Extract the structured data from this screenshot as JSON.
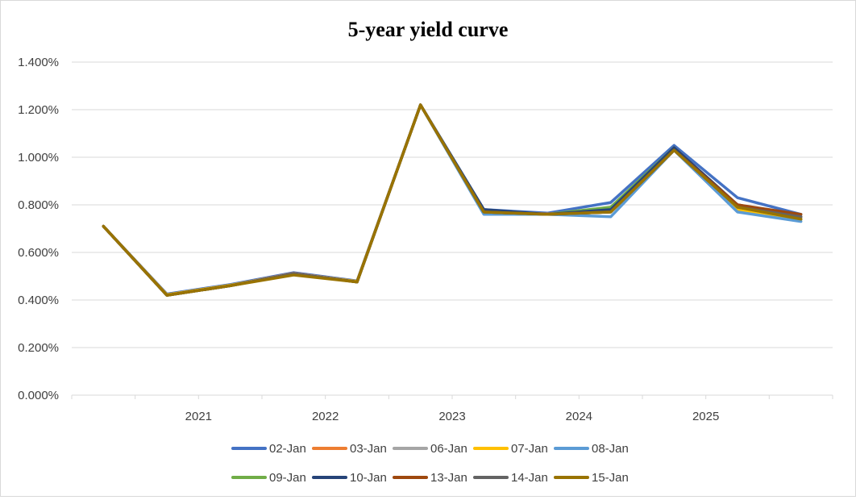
{
  "chart_data": {
    "type": "line",
    "title": "5-year yield curve",
    "xlabel": "",
    "ylabel": "",
    "ylim": [
      0,
      0.014
    ],
    "y_ticks": [
      "0.000%",
      "0.200%",
      "0.400%",
      "0.600%",
      "0.800%",
      "1.000%",
      "1.200%",
      "1.400%"
    ],
    "x_tick_labels": [
      "2021",
      "2022",
      "2023",
      "2024",
      "2025"
    ],
    "point_count": 12,
    "grid": "horizontal",
    "legend_position": "bottom",
    "series": [
      {
        "name": "02-Jan",
        "color": "#4472C4",
        "values": [
          0.0071,
          0.00425,
          0.00465,
          0.00515,
          0.0048,
          0.0122,
          0.0078,
          0.00765,
          0.0081,
          0.0105,
          0.0083,
          0.0076
        ]
      },
      {
        "name": "03-Jan",
        "color": "#ED7D31",
        "values": [
          0.0071,
          0.00422,
          0.00462,
          0.00512,
          0.00478,
          0.0122,
          0.00772,
          0.00762,
          0.0078,
          0.0104,
          0.008,
          0.0075
        ]
      },
      {
        "name": "06-Jan",
        "color": "#A5A5A5",
        "values": [
          0.0071,
          0.00422,
          0.00462,
          0.0051,
          0.00478,
          0.0122,
          0.0077,
          0.0076,
          0.0077,
          0.0103,
          0.0079,
          0.0074
        ]
      },
      {
        "name": "07-Jan",
        "color": "#FFC000",
        "values": [
          0.0071,
          0.00422,
          0.00462,
          0.0051,
          0.00478,
          0.0122,
          0.0077,
          0.0076,
          0.0077,
          0.0103,
          0.0078,
          0.0074
        ]
      },
      {
        "name": "08-Jan",
        "color": "#5B9BD5",
        "values": [
          0.0071,
          0.0042,
          0.0046,
          0.0051,
          0.00476,
          0.0122,
          0.0076,
          0.0076,
          0.0075,
          0.0103,
          0.0077,
          0.0073
        ]
      },
      {
        "name": "09-Jan",
        "color": "#70AD47",
        "values": [
          0.0071,
          0.0042,
          0.0046,
          0.0051,
          0.00476,
          0.0122,
          0.0077,
          0.0076,
          0.0079,
          0.0104,
          0.0079,
          0.0074
        ]
      },
      {
        "name": "10-Jan",
        "color": "#264478",
        "values": [
          0.0071,
          0.0042,
          0.0046,
          0.0051,
          0.00476,
          0.0122,
          0.0078,
          0.0076,
          0.0078,
          0.0104,
          0.008,
          0.0075
        ]
      },
      {
        "name": "13-Jan",
        "color": "#9E480E",
        "values": [
          0.0071,
          0.0042,
          0.0046,
          0.0051,
          0.00476,
          0.0122,
          0.0077,
          0.0076,
          0.0077,
          0.0103,
          0.008,
          0.0076
        ]
      },
      {
        "name": "14-Jan",
        "color": "#636363",
        "values": [
          0.0071,
          0.0042,
          0.0046,
          0.0051,
          0.00476,
          0.0122,
          0.0077,
          0.0076,
          0.0077,
          0.0103,
          0.0079,
          0.0075
        ]
      },
      {
        "name": "15-Jan",
        "color": "#997300",
        "values": [
          0.0071,
          0.0042,
          0.0046,
          0.00505,
          0.00476,
          0.0122,
          0.0077,
          0.0076,
          0.0077,
          0.0103,
          0.0079,
          0.0074
        ]
      }
    ]
  }
}
